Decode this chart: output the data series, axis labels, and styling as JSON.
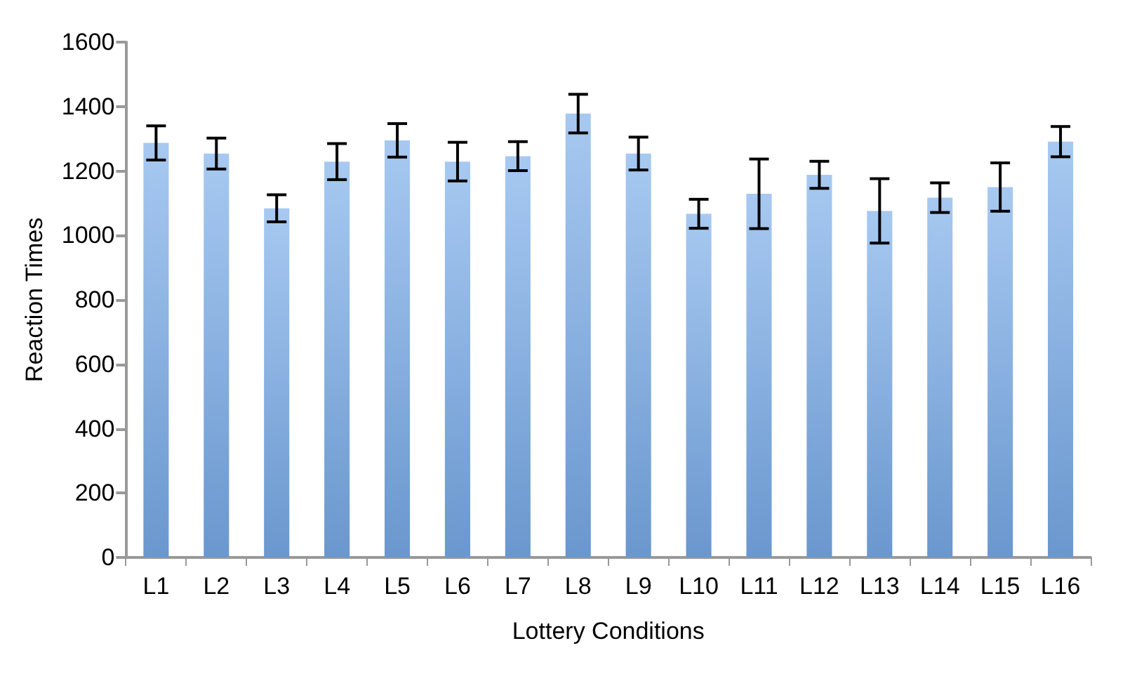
{
  "chart_data": {
    "type": "bar",
    "xlabel": "Lottery Conditions",
    "ylabel": "Reaction Times",
    "categories": [
      "L1",
      "L2",
      "L3",
      "L4",
      "L5",
      "L6",
      "L7",
      "L8",
      "L9",
      "L10",
      "L11",
      "L12",
      "L13",
      "L14",
      "L15",
      "L16"
    ],
    "values": [
      1287,
      1254,
      1084,
      1229,
      1295,
      1229,
      1246,
      1378,
      1254,
      1067,
      1129,
      1188,
      1076,
      1117,
      1150,
      1291
    ],
    "errors": [
      53,
      48,
      42,
      56,
      52,
      60,
      45,
      60,
      51,
      45,
      108,
      42,
      100,
      46,
      75,
      47
    ],
    "color": "#78acea",
    "ylim": [
      0,
      1600
    ],
    "yticks": [
      0,
      200,
      400,
      600,
      800,
      1000,
      1200,
      1400,
      1600
    ],
    "grid": false
  }
}
